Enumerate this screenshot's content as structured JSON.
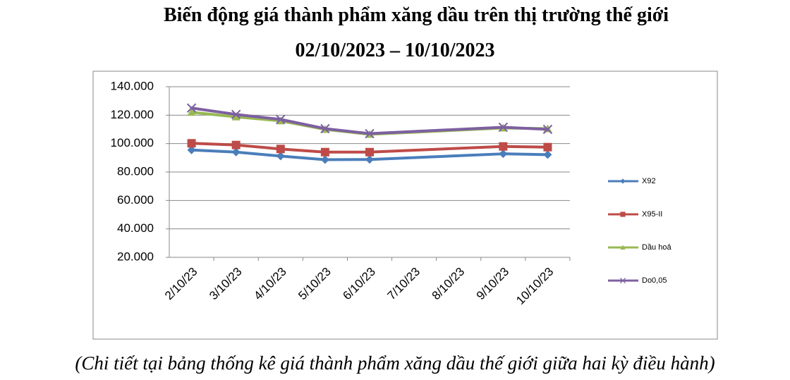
{
  "chart_data": {
    "type": "line",
    "title": "Biến động giá thành phẩm xăng dầu trên thị trường thế giới",
    "subtitle": "02/10/2023 – 10/10/2023",
    "caption": "(Chi tiết tại bảng thống kê giá thành phẩm xăng dầu thế giới giữa hai kỳ điều hành)",
    "categories": [
      "2/10/23",
      "3/10/23",
      "4/10/23",
      "5/10/23",
      "6/10/23",
      "7/10/23",
      "8/10/23",
      "9/10/23",
      "10/10/23"
    ],
    "series": [
      {
        "name": "X92",
        "color": "#4a7ebb",
        "marker": "diamond",
        "values": [
          95500,
          94000,
          91200,
          88700,
          88800,
          null,
          null,
          92800,
          92200
        ]
      },
      {
        "name": "X95-II",
        "color": "#be4b48",
        "marker": "square",
        "values": [
          100200,
          99000,
          96200,
          94000,
          94000,
          null,
          null,
          98000,
          97500
        ]
      },
      {
        "name": "Dầu hoả",
        "color": "#98b954",
        "marker": "triangle",
        "values": [
          122000,
          118800,
          116000,
          110000,
          106500,
          null,
          null,
          111000,
          110500
        ]
      },
      {
        "name": "Do0,05",
        "color": "#7d60a0",
        "marker": "x",
        "values": [
          125000,
          120500,
          117000,
          110500,
          107000,
          null,
          null,
          111500,
          110000
        ]
      }
    ],
    "ylim": [
      20000,
      140000
    ],
    "yticks": [
      {
        "value": 20000,
        "label": "20.000"
      },
      {
        "value": 40000,
        "label": "40.000"
      },
      {
        "value": 60000,
        "label": "60.000"
      },
      {
        "value": 80000,
        "label": "80.000"
      },
      {
        "value": 100000,
        "label": "100.000"
      },
      {
        "value": 120000,
        "label": "120.000"
      },
      {
        "value": 140000,
        "label": "140.000"
      }
    ],
    "grid": true,
    "legend": "right"
  }
}
